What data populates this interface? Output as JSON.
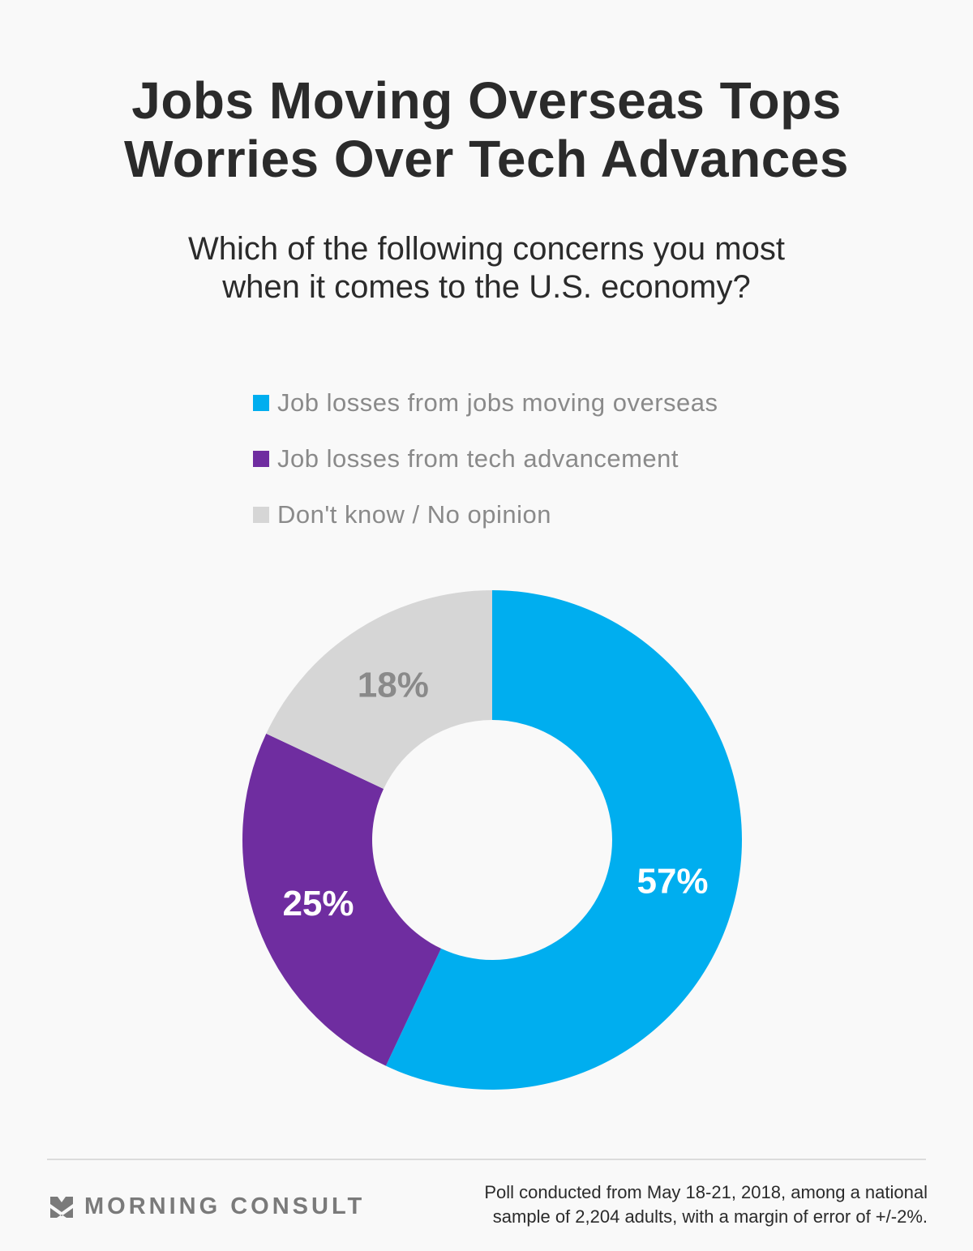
{
  "title_line1": "Jobs Moving Overseas Tops",
  "title_line2": "Worries Over Tech Advances",
  "subtitle_line1": "Which of the following concerns you most",
  "subtitle_line2": "when it comes to the U.S. economy?",
  "chart_data": {
    "type": "pie",
    "variant": "donut",
    "title": "Jobs Moving Overseas Tops Worries Over Tech Advances",
    "legend_position": "top",
    "categories": [
      "Job losses from jobs moving overseas",
      "Job losses from tech advancement",
      "Don't know / No opinion"
    ],
    "values": [
      57,
      25,
      18
    ],
    "labels": [
      "57%",
      "25%",
      "18%"
    ],
    "colors": [
      "#00aeef",
      "#6f2da0",
      "#d6d6d6"
    ],
    "label_colors": [
      "#ffffff",
      "#ffffff",
      "#8a8a8a"
    ]
  },
  "footer": {
    "brand": "MORNING CONSULT",
    "note_line1": "Poll conducted from May 18-21, 2018, among a national",
    "note_line2": "sample of 2,204 adults, with a margin of error of +/-2%."
  }
}
